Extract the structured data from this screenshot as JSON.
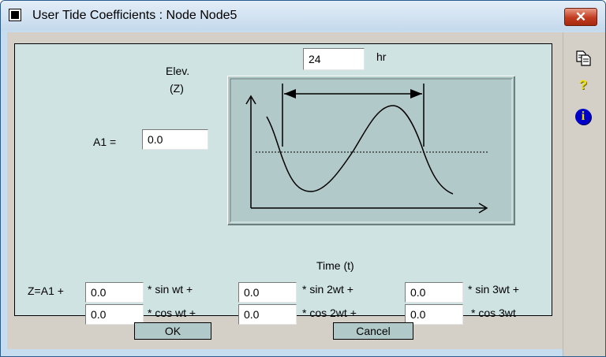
{
  "window": {
    "title": "User Tide Coefficients : Node Node5",
    "close_symbol": "✕"
  },
  "period": {
    "value": "24",
    "unit": "hr"
  },
  "diagram": {
    "y_label_line1": "Elev.",
    "y_label_line2": "(Z)",
    "x_label": "Time (t)"
  },
  "a1": {
    "label": "A1 =",
    "value": "0.0"
  },
  "equation": {
    "prefix": "Z=A1 +",
    "sin_terms": [
      {
        "value": "0.0",
        "label": "* sin wt +"
      },
      {
        "value": "0.0",
        "label": "* sin 2wt +"
      },
      {
        "value": "0.0",
        "label": "* sin 3wt +"
      }
    ],
    "cos_terms": [
      {
        "value": "0.0",
        "label": "* cos wt +"
      },
      {
        "value": "0.0",
        "label": "* cos 2wt +"
      },
      {
        "value": "0.0",
        "label": "* cos 3wt"
      }
    ]
  },
  "buttons": {
    "ok": "OK",
    "cancel": "Cancel"
  },
  "sidebar": {
    "help_symbol": "?",
    "info_symbol": "i",
    "icons": [
      "copy-icon",
      "help-icon",
      "info-icon"
    ]
  },
  "colors": {
    "panel_background": "#cfe3e3",
    "diagram_background": "#b2c9c9",
    "button_face": "#b2c9c9",
    "close_button": "#c23b1f",
    "help_icon": "#f0e000",
    "info_icon": "#0000c8"
  }
}
